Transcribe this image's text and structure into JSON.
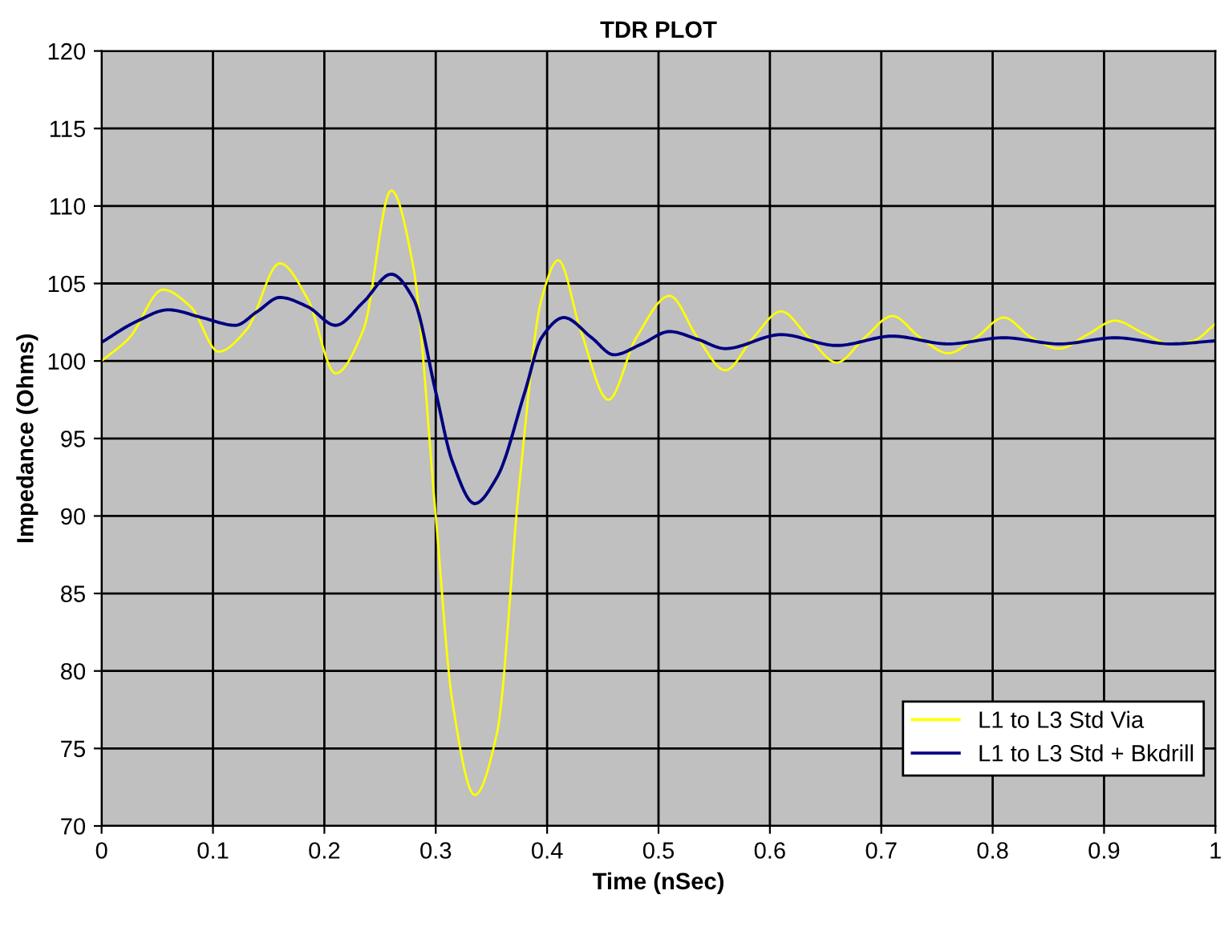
{
  "chart_data": {
    "type": "line",
    "title": "TDR PLOT",
    "xlabel": "Time (nSec)",
    "ylabel": "Impedance (Ohms)",
    "xlim": [
      0,
      1
    ],
    "xticks": [
      0,
      0.1,
      0.2,
      0.3,
      0.4,
      0.5,
      0.6,
      0.7,
      0.8,
      0.9,
      1
    ],
    "ylim": [
      70,
      120
    ],
    "yticks": [
      70,
      75,
      80,
      85,
      90,
      95,
      100,
      105,
      110,
      115,
      120
    ],
    "grid": true,
    "legend": "bottom right",
    "marker": "none",
    "line_style": "solid",
    "series": [
      {
        "name": "L1 to L3 Std Via",
        "color": "#ffff00",
        "x": [
          0,
          0.025,
          0.055,
          0.08,
          0.105,
          0.13,
          0.16,
          0.185,
          0.21,
          0.235,
          0.26,
          0.28,
          0.3,
          0.315,
          0.335,
          0.355,
          0.375,
          0.395,
          0.41,
          0.43,
          0.455,
          0.48,
          0.51,
          0.535,
          0.56,
          0.585,
          0.61,
          0.635,
          0.66,
          0.685,
          0.71,
          0.735,
          0.76,
          0.785,
          0.81,
          0.835,
          0.86,
          0.885,
          0.91,
          0.935,
          0.96,
          0.98,
          1.0
        ],
        "values": [
          100,
          101.5,
          104.6,
          103.5,
          100.6,
          102,
          106.3,
          104,
          99.2,
          102,
          111,
          106,
          90,
          78,
          72,
          76,
          92,
          104,
          106.5,
          102,
          97.5,
          101.5,
          104.2,
          101.5,
          99.4,
          101.5,
          103.2,
          101.5,
          99.9,
          101.5,
          102.9,
          101.5,
          100.5,
          101.5,
          102.8,
          101.5,
          100.8,
          101.7,
          102.6,
          101.8,
          101.1,
          101.3,
          102.4
        ]
      },
      {
        "name": "L1 to L3 Std + Bkdrill",
        "color": "#000080",
        "x": [
          0,
          0.03,
          0.06,
          0.09,
          0.12,
          0.14,
          0.16,
          0.185,
          0.21,
          0.235,
          0.26,
          0.28,
          0.3,
          0.315,
          0.335,
          0.355,
          0.38,
          0.395,
          0.415,
          0.44,
          0.46,
          0.485,
          0.51,
          0.535,
          0.56,
          0.61,
          0.66,
          0.71,
          0.76,
          0.81,
          0.86,
          0.91,
          0.96,
          1.0
        ],
        "values": [
          101.2,
          102.5,
          103.3,
          102.8,
          102.3,
          103.2,
          104.1,
          103.5,
          102.3,
          103.8,
          105.6,
          104,
          98,
          93.5,
          90.8,
          92.5,
          98,
          101.5,
          102.8,
          101.5,
          100.4,
          101.1,
          101.9,
          101.4,
          100.8,
          101.7,
          101.0,
          101.6,
          101.1,
          101.5,
          101.1,
          101.5,
          101.1,
          101.3
        ]
      }
    ]
  }
}
